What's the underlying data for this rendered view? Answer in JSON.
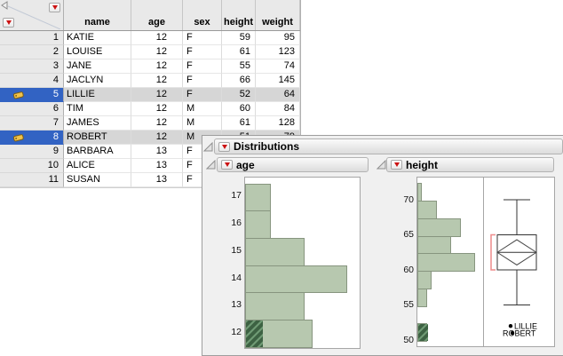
{
  "report": {
    "title": "Distributions"
  },
  "table": {
    "columns": [
      "name",
      "age",
      "sex",
      "height",
      "weight"
    ],
    "rows": [
      {
        "n": "1",
        "name": "KATIE",
        "age": "12",
        "sex": "F",
        "height": "59",
        "weight": "95",
        "selected": false,
        "labeled": false
      },
      {
        "n": "2",
        "name": "LOUISE",
        "age": "12",
        "sex": "F",
        "height": "61",
        "weight": "123",
        "selected": false,
        "labeled": false
      },
      {
        "n": "3",
        "name": "JANE",
        "age": "12",
        "sex": "F",
        "height": "55",
        "weight": "74",
        "selected": false,
        "labeled": false
      },
      {
        "n": "4",
        "name": "JACLYN",
        "age": "12",
        "sex": "F",
        "height": "66",
        "weight": "145",
        "selected": false,
        "labeled": false
      },
      {
        "n": "5",
        "name": "LILLIE",
        "age": "12",
        "sex": "F",
        "height": "52",
        "weight": "64",
        "selected": true,
        "labeled": true
      },
      {
        "n": "6",
        "name": "TIM",
        "age": "12",
        "sex": "M",
        "height": "60",
        "weight": "84",
        "selected": false,
        "labeled": false
      },
      {
        "n": "7",
        "name": "JAMES",
        "age": "12",
        "sex": "M",
        "height": "61",
        "weight": "128",
        "selected": false,
        "labeled": false
      },
      {
        "n": "8",
        "name": "ROBERT",
        "age": "12",
        "sex": "M",
        "height": "51",
        "weight": "79",
        "selected": true,
        "labeled": true
      },
      {
        "n": "9",
        "name": "BARBARA",
        "age": "13",
        "sex": "F",
        "height": "",
        "weight": "",
        "selected": false,
        "labeled": false
      },
      {
        "n": "10",
        "name": "ALICE",
        "age": "13",
        "sex": "F",
        "height": "",
        "weight": "",
        "selected": false,
        "labeled": false
      },
      {
        "n": "11",
        "name": "SUSAN",
        "age": "13",
        "sex": "F",
        "height": "",
        "weight": "",
        "selected": false,
        "labeled": false
      }
    ]
  },
  "chart_data": [
    {
      "type": "bar",
      "title": "age",
      "orientation": "horizontal",
      "categories": [
        "12",
        "13",
        "14",
        "15",
        "16",
        "17"
      ],
      "values": [
        8,
        7,
        12,
        7,
        3,
        3
      ],
      "selected_values": [
        2,
        0,
        0,
        0,
        0,
        0
      ],
      "ylabel": "age",
      "axis_ticks": [
        "12",
        "13",
        "14",
        "15",
        "16",
        "17"
      ],
      "ylim": [
        11.5,
        17.5
      ]
    },
    {
      "type": "bar",
      "title": "height",
      "orientation": "horizontal",
      "bin_start": 50,
      "bin_width": 2.5,
      "counts_bottom_to_top": [
        2,
        0,
        2,
        3,
        12,
        7,
        9,
        4,
        1
      ],
      "selected_counts": [
        2,
        0,
        0,
        0,
        0,
        0,
        0,
        0,
        0
      ],
      "axis_ticks": [
        "50",
        "55",
        "60",
        "65",
        "70"
      ],
      "ylim": [
        49.2,
        73.5
      ],
      "boxplot": {
        "whisker_low": 55,
        "q1": 60,
        "median": 62.5,
        "q3": 65,
        "whisker_high": 70,
        "mean_diamond_center": 62.5,
        "mean_diamond_top": 64.3,
        "mean_diamond_bottom": 60.7,
        "shortest_half_bracket": [
          60,
          65
        ],
        "labeled_points": [
          {
            "label": "LILLIE",
            "value": 52
          },
          {
            "label": "ROBERT",
            "value": 51
          }
        ]
      }
    }
  ],
  "colors": {
    "bar_fill": "#b7c8af",
    "bar_border": "#87957f",
    "selected_hatch_dark": "#3d6243",
    "selected_hatch_light": "#6f9a74",
    "row_selection_blue": "#3263c3",
    "selected_row_gray": "#d6d6d6",
    "menu_triangle_red": "#cc1111",
    "shortest_half_red": "#ee8c8c"
  },
  "icons": {
    "row_label": "yellow-tag",
    "menu": "red-triangle-down",
    "disclosure": "gray-open-triangle"
  }
}
